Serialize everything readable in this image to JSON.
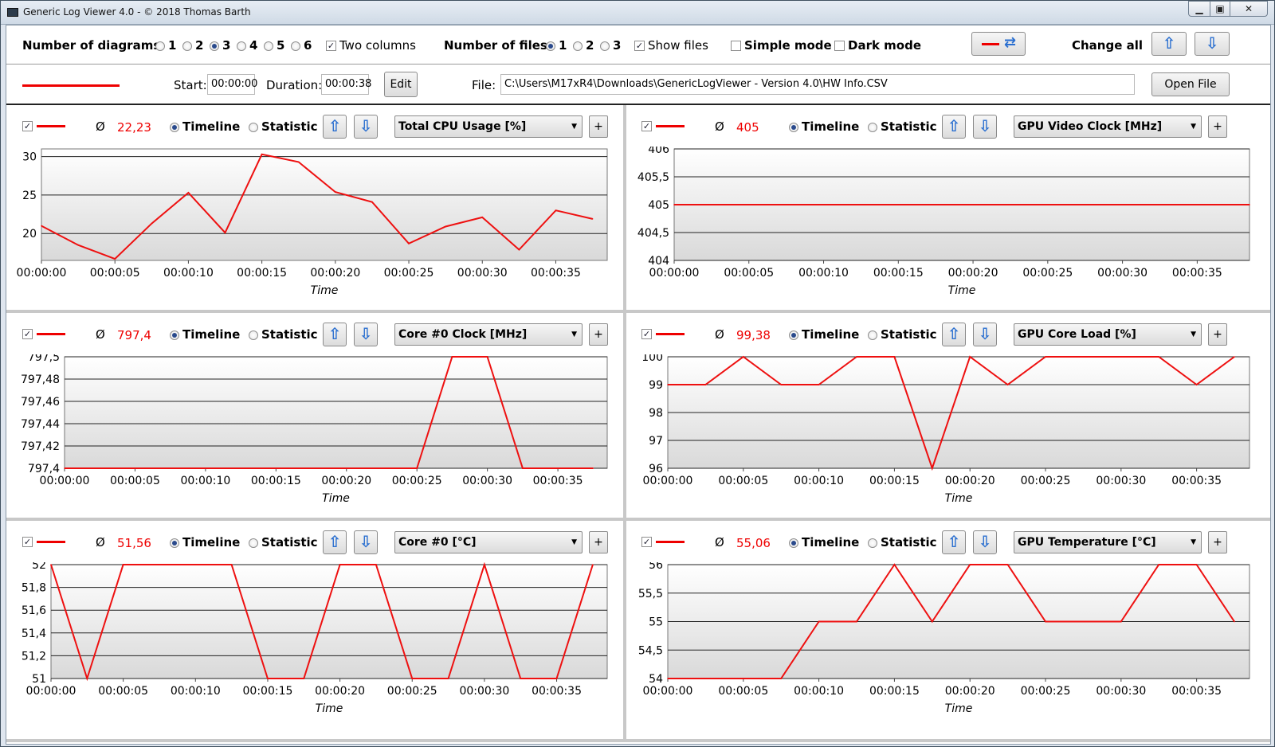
{
  "window": {
    "title": "Generic Log Viewer 4.0 - © 2018 Thomas Barth",
    "min": "▁",
    "max": "▣",
    "close": "✕"
  },
  "toolbar": {
    "diagrams_label": "Number of diagrams",
    "diagram_options": [
      "1",
      "2",
      "3",
      "4",
      "5",
      "6"
    ],
    "diagram_selected": "3",
    "two_columns_label": "Two columns",
    "two_columns_checked": true,
    "files_label": "Number of files",
    "file_options": [
      "1",
      "2",
      "3"
    ],
    "file_selected": "1",
    "show_files_label": "Show files",
    "show_files_checked": true,
    "simple_mode_label": "Simple mode",
    "simple_mode_checked": false,
    "dark_mode_label": "Dark mode",
    "dark_mode_checked": false,
    "change_all_label": "Change all",
    "swap_icon": "⇄",
    "up_icon": "⇧",
    "down_icon": "⇩"
  },
  "file_bar": {
    "start_label": "Start:",
    "start_value": "00:00:00",
    "duration_label": "Duration:",
    "duration_value": "00:00:38",
    "edit_label": "Edit",
    "file_label": "File:",
    "file_path": "C:\\Users\\M17xR4\\Downloads\\GenericLogViewer - Version 4.0\\HW Info.CSV",
    "open_file_label": "Open File",
    "line_color": "#e00000"
  },
  "common": {
    "avg_symbol": "Ø",
    "timeline_label": "Timeline",
    "statistic_label": "Statistic",
    "plus_label": "+",
    "x_axis_label": "Time",
    "x_ticks": [
      "00:00:00",
      "00:00:05",
      "00:00:10",
      "00:00:15",
      "00:00:20",
      "00:00:25",
      "00:00:30",
      "00:00:35"
    ]
  },
  "chart_data": [
    {
      "type": "line",
      "sensor": "Total CPU Usage [%]",
      "average": "22,23",
      "xlabel": "Time",
      "ylim": [
        16.5,
        31
      ],
      "yticks": [
        "30",
        "25",
        "20"
      ],
      "ytick_values": [
        30,
        25,
        20
      ],
      "x": [
        0,
        2.5,
        5,
        7.5,
        10,
        12.5,
        15,
        17.5,
        20,
        22.5,
        25,
        27.5,
        30,
        32.5,
        35,
        37.5
      ],
      "values": [
        21,
        18.5,
        16.7,
        21.3,
        25.3,
        20.1,
        30.3,
        29.3,
        25.4,
        24.1,
        18.7,
        20.9,
        22.1,
        17.9,
        23,
        21.9
      ]
    },
    {
      "type": "line",
      "sensor": "GPU Video Clock [MHz]",
      "average": "405",
      "xlabel": "Time",
      "ylim": [
        404,
        406
      ],
      "yticks": [
        "406",
        "405,5",
        "405",
        "404,5",
        "404"
      ],
      "ytick_values": [
        406,
        405.5,
        405,
        404.5,
        404
      ],
      "x": [
        0,
        38.5
      ],
      "values": [
        405,
        405
      ]
    },
    {
      "type": "line",
      "sensor": "Core #0 Clock [MHz]",
      "average": "797,4",
      "xlabel": "Time",
      "ylim": [
        797.4,
        797.5
      ],
      "yticks": [
        "797,5",
        "797,48",
        "797,46",
        "797,44",
        "797,42",
        "797,4"
      ],
      "ytick_values": [
        797.5,
        797.48,
        797.46,
        797.44,
        797.42,
        797.4
      ],
      "x": [
        0,
        25,
        27.5,
        30,
        32.5,
        35,
        37.5
      ],
      "values": [
        797.4,
        797.4,
        797.5,
        797.5,
        797.4,
        797.4,
        797.4
      ]
    },
    {
      "type": "line",
      "sensor": "GPU Core Load [%]",
      "average": "99,38",
      "xlabel": "Time",
      "ylim": [
        96,
        100
      ],
      "yticks": [
        "100",
        "99",
        "98",
        "97",
        "96"
      ],
      "ytick_values": [
        100,
        99,
        98,
        97,
        96
      ],
      "x": [
        0,
        2.5,
        5,
        7.5,
        10,
        12.5,
        15,
        17.5,
        20,
        22.5,
        25,
        27.5,
        30,
        32.5,
        35,
        37.5
      ],
      "values": [
        99,
        99,
        100,
        99,
        99,
        100,
        100,
        96,
        100,
        99,
        100,
        100,
        100,
        100,
        99,
        100
      ]
    },
    {
      "type": "line",
      "sensor": "Core #0 [°C]",
      "average": "51,56",
      "xlabel": "Time",
      "ylim": [
        51,
        52
      ],
      "yticks": [
        "52",
        "51,8",
        "51,6",
        "51,4",
        "51,2",
        "51"
      ],
      "ytick_values": [
        52,
        51.8,
        51.6,
        51.4,
        51.2,
        51
      ],
      "x": [
        0,
        2.5,
        5,
        7.5,
        10,
        12.5,
        15,
        17.5,
        20,
        22.5,
        25,
        27.5,
        30,
        32.5,
        35,
        37.5
      ],
      "values": [
        52,
        51,
        52,
        52,
        52,
        52,
        51,
        51,
        52,
        52,
        51,
        51,
        52,
        51,
        51,
        52
      ]
    },
    {
      "type": "line",
      "sensor": "GPU Temperature [°C]",
      "average": "55,06",
      "xlabel": "Time",
      "ylim": [
        54,
        56
      ],
      "yticks": [
        "56",
        "55,5",
        "55",
        "54,5",
        "54"
      ],
      "ytick_values": [
        56,
        55.5,
        55,
        54.5,
        54
      ],
      "x": [
        0,
        2.5,
        5,
        7.5,
        10,
        12.5,
        15,
        17.5,
        20,
        22.5,
        25,
        27.5,
        30,
        32.5,
        35,
        37.5
      ],
      "values": [
        54,
        54,
        54,
        54,
        55,
        55,
        56,
        55,
        56,
        56,
        55,
        55,
        55,
        56,
        56,
        55
      ]
    }
  ]
}
